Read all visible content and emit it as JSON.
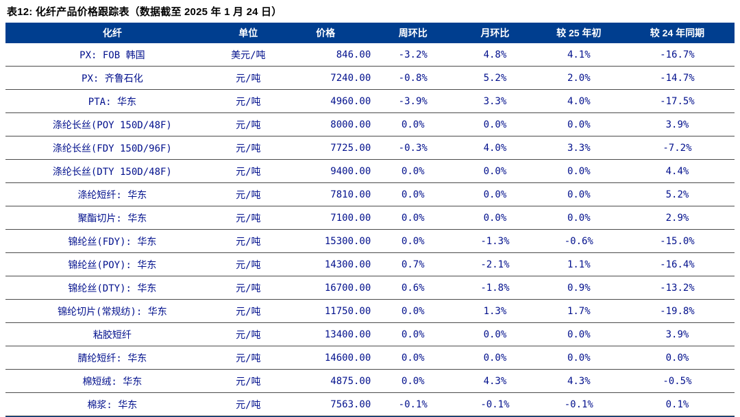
{
  "title": "表12: 化纤产品价格跟踪表（数据截至 2025 年 1 月 24 日）",
  "colors": {
    "header_bg": "#003E8F",
    "body_text": "#000F8C",
    "row_divider": "#4a4a4a",
    "title_text": "#000000"
  },
  "table": {
    "headers": [
      "化纤",
      "单位",
      "价格",
      "周环比",
      "月环比",
      "较 25 年初",
      "较 24 年同期"
    ],
    "rows": [
      [
        "PX: FOB 韩国",
        "美元/吨",
        "846.00",
        "-3.2%",
        "4.8%",
        "4.1%",
        "-16.7%"
      ],
      [
        "PX: 齐鲁石化",
        "元/吨",
        "7240.00",
        "-0.8%",
        "5.2%",
        "2.0%",
        "-14.7%"
      ],
      [
        "PTA: 华东",
        "元/吨",
        "4960.00",
        "-3.9%",
        "3.3%",
        "4.0%",
        "-17.5%"
      ],
      [
        "涤纶长丝(POY 150D/48F)",
        "元/吨",
        "8000.00",
        "0.0%",
        "0.0%",
        "0.0%",
        "3.9%"
      ],
      [
        "涤纶长丝(FDY 150D/96F)",
        "元/吨",
        "7725.00",
        "-0.3%",
        "4.0%",
        "3.3%",
        "-7.2%"
      ],
      [
        "涤纶长丝(DTY 150D/48F)",
        "元/吨",
        "9400.00",
        "0.0%",
        "0.0%",
        "0.0%",
        "4.4%"
      ],
      [
        "涤纶短纤: 华东",
        "元/吨",
        "7810.00",
        "0.0%",
        "0.0%",
        "0.0%",
        "5.2%"
      ],
      [
        "聚酯切片: 华东",
        "元/吨",
        "7100.00",
        "0.0%",
        "0.0%",
        "0.0%",
        "2.9%"
      ],
      [
        "锦纶丝(FDY): 华东",
        "元/吨",
        "15300.00",
        "0.0%",
        "-1.3%",
        "-0.6%",
        "-15.0%"
      ],
      [
        "锦纶丝(POY): 华东",
        "元/吨",
        "14300.00",
        "0.7%",
        "-2.1%",
        "1.1%",
        "-16.4%"
      ],
      [
        "锦纶丝(DTY): 华东",
        "元/吨",
        "16700.00",
        "0.6%",
        "-1.8%",
        "0.9%",
        "-13.2%"
      ],
      [
        "锦纶切片(常规纺): 华东",
        "元/吨",
        "11750.00",
        "0.0%",
        "1.3%",
        "1.7%",
        "-19.8%"
      ],
      [
        "粘胶短纤",
        "元/吨",
        "13400.00",
        "0.0%",
        "0.0%",
        "0.0%",
        "3.9%"
      ],
      [
        "腈纶短纤: 华东",
        "元/吨",
        "14600.00",
        "0.0%",
        "0.0%",
        "0.0%",
        "0.0%"
      ],
      [
        "棉短绒:  华东",
        "元/吨",
        "4875.00",
        "0.0%",
        "4.3%",
        "4.3%",
        "-0.5%"
      ],
      [
        "棉浆:  华东",
        "元/吨",
        "7563.00",
        "-0.1%",
        "-0.1%",
        "-0.1%",
        "0.1%"
      ]
    ]
  }
}
